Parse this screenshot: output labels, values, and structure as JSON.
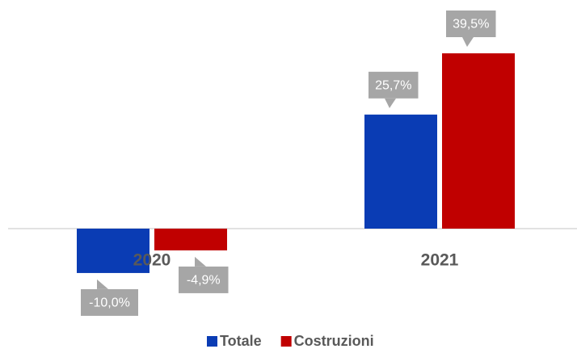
{
  "chart_data": {
    "type": "bar",
    "categories": [
      "2020",
      "2021"
    ],
    "series": [
      {
        "name": "Totale",
        "color": "#0a3cb4",
        "values": [
          -10.0,
          25.7
        ],
        "value_labels": [
          "-10,0%",
          "25,7%"
        ]
      },
      {
        "name": "Costruzioni",
        "color": "#c00000",
        "values": [
          -4.9,
          39.5
        ],
        "value_labels": [
          "-4,9%",
          "39,5%"
        ]
      }
    ]
  }
}
